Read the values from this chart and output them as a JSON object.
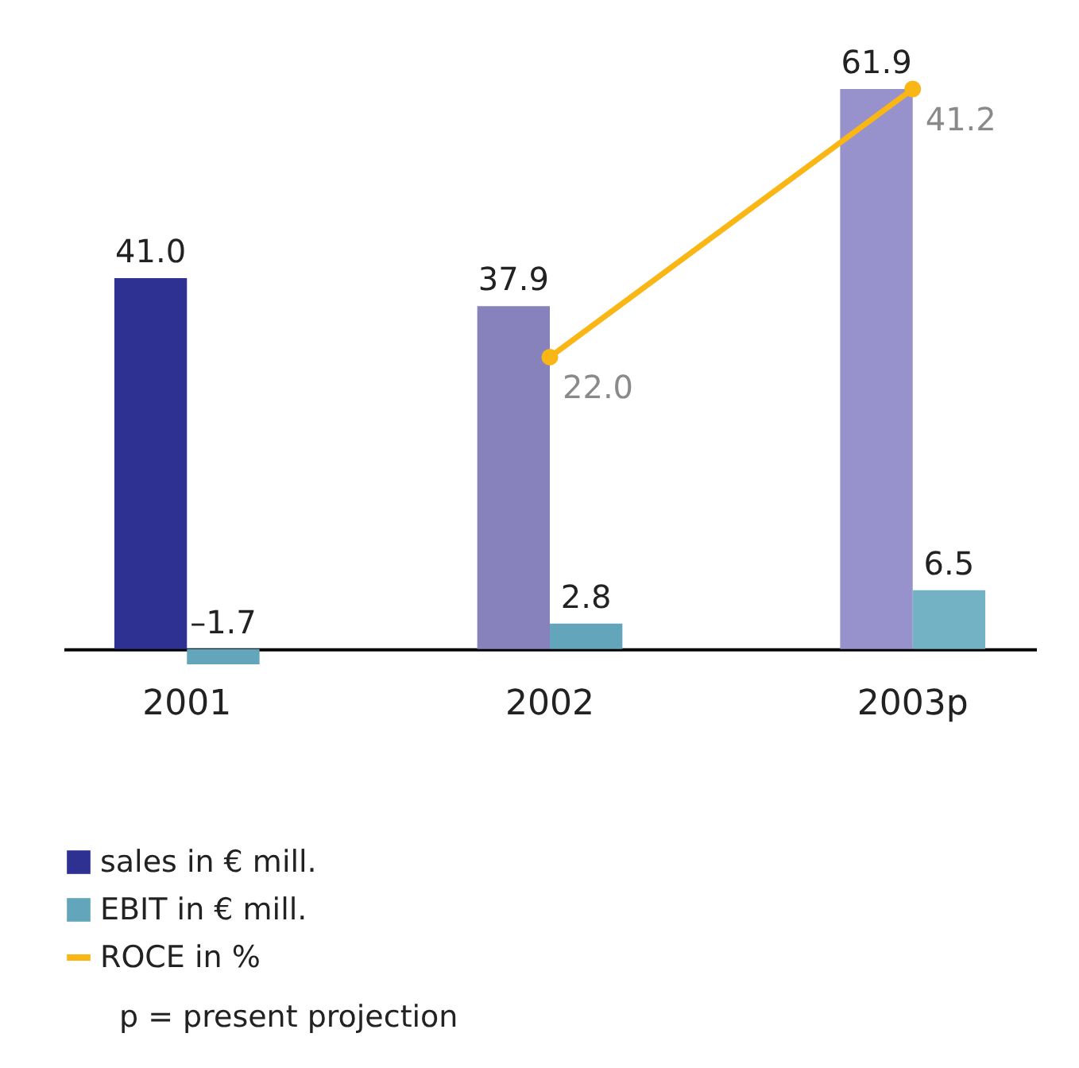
{
  "chart_data": {
    "type": "bar",
    "categories": [
      "2001",
      "2002",
      "2003p"
    ],
    "series": [
      {
        "name": "sales in € mill.",
        "color": "#2e3192",
        "colors": [
          "#2e3192",
          "#8882bc",
          "#9791cc"
        ],
        "values": [
          41.0,
          37.9,
          61.9
        ],
        "value_labels": [
          "41.0",
          "37.9",
          "61.9"
        ]
      },
      {
        "name": "EBIT in € mill.",
        "color": "#63a6bb",
        "colors": [
          "#63a6bb",
          "#63a6bb",
          "#72b2c4"
        ],
        "values": [
          -1.7,
          2.8,
          6.5
        ],
        "value_labels": [
          "–1.7",
          "2.8",
          "6.5"
        ]
      },
      {
        "name": "ROCE in %",
        "type": "line",
        "axis": "y2",
        "color": "#f9b614",
        "values": [
          null,
          22.0,
          41.2
        ],
        "value_labels": [
          null,
          "22.0",
          "41.2"
        ]
      }
    ],
    "tick_labels": "x",
    "marker": "circle",
    "legend": "bottom left",
    "annotations": [
      "p = present projection"
    ]
  }
}
